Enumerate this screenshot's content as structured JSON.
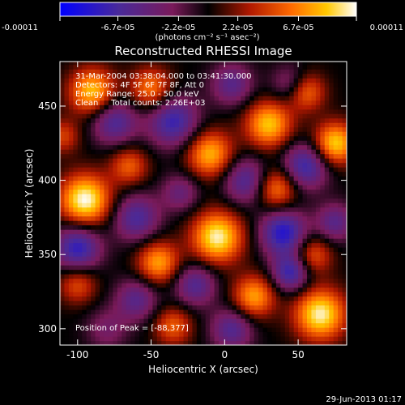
{
  "chart_data": {
    "type": "heatmap",
    "title": "Reconstructed RHESSI Image",
    "xlabel": "Heliocentric X (arcsec)",
    "ylabel": "Heliocentric Y (arcsec)",
    "xlim": [
      -112,
      83
    ],
    "ylim": [
      289,
      480
    ],
    "x_ticks": [
      -100,
      -50,
      0,
      50
    ],
    "y_ticks": [
      300,
      350,
      400,
      450
    ],
    "colorbar": {
      "range": [
        -0.00011,
        0.00011
      ],
      "tick_values": [
        -0.00011,
        -6.7e-05,
        -2.2e-05,
        2.2e-05,
        6.7e-05,
        0.00011
      ],
      "tick_labels": [
        "-0.00011",
        "-6.7e-05",
        "-2.2e-05",
        "2.2e-05",
        "6.7e-05",
        "0.00011"
      ],
      "units": "(photons cm⁻² s⁻¹ asec⁻²)",
      "colors": [
        "#0000ff",
        "#4a2a99",
        "#7a1a5a",
        "#000000",
        "#b01800",
        "#ff6a00",
        "#ffc800",
        "#ffffff"
      ]
    },
    "annotations": [
      "31-Mar-2004 03:38:04.000 to 03:41:30.000",
      "Detectors: 4F 5F 6F 7F 8F, Att 0",
      "Energy Range: 25.0 - 50.0 keV",
      "Clean     Total counts: 2.26E+03"
    ],
    "peak_label": "Position of Peak = [-88,377]",
    "blobs": [
      {
        "x": -95,
        "y": 387,
        "v": 1.0,
        "s": 12
      },
      {
        "x": -90,
        "y": 460,
        "v": 0.8,
        "s": 11
      },
      {
        "x": -50,
        "y": 462,
        "v": 0.6,
        "s": 10
      },
      {
        "x": -65,
        "y": 410,
        "v": 0.5,
        "s": 9
      },
      {
        "x": -10,
        "y": 418,
        "v": 0.75,
        "s": 11
      },
      {
        "x": 30,
        "y": 438,
        "v": 0.8,
        "s": 11
      },
      {
        "x": 75,
        "y": 425,
        "v": 0.85,
        "s": 10
      },
      {
        "x": 55,
        "y": 460,
        "v": 0.6,
        "s": 9
      },
      {
        "x": -5,
        "y": 362,
        "v": 0.95,
        "s": 12
      },
      {
        "x": 35,
        "y": 395,
        "v": 0.65,
        "s": 10
      },
      {
        "x": 60,
        "y": 350,
        "v": 0.5,
        "s": 9
      },
      {
        "x": 65,
        "y": 310,
        "v": 0.95,
        "s": 12
      },
      {
        "x": 20,
        "y": 322,
        "v": 0.7,
        "s": 10
      },
      {
        "x": -45,
        "y": 345,
        "v": 0.7,
        "s": 10
      },
      {
        "x": -35,
        "y": 302,
        "v": 0.5,
        "s": 9
      },
      {
        "x": -100,
        "y": 330,
        "v": 0.45,
        "s": 9
      },
      {
        "x": -110,
        "y": 430,
        "v": 0.4,
        "s": 8
      },
      {
        "x": -80,
        "y": 300,
        "v": -0.3,
        "s": 10
      },
      {
        "x": -75,
        "y": 440,
        "v": -0.6,
        "s": 11
      },
      {
        "x": -35,
        "y": 440,
        "v": -0.7,
        "s": 12
      },
      {
        "x": 5,
        "y": 465,
        "v": -0.5,
        "s": 10
      },
      {
        "x": 45,
        "y": 465,
        "v": -0.4,
        "s": 9
      },
      {
        "x": 15,
        "y": 400,
        "v": -0.6,
        "s": 11
      },
      {
        "x": 55,
        "y": 410,
        "v": -0.7,
        "s": 11
      },
      {
        "x": -100,
        "y": 355,
        "v": -0.75,
        "s": 11
      },
      {
        "x": -60,
        "y": 375,
        "v": -0.6,
        "s": 11
      },
      {
        "x": -20,
        "y": 330,
        "v": -0.55,
        "s": 10
      },
      {
        "x": 40,
        "y": 365,
        "v": -0.8,
        "s": 11
      },
      {
        "x": 45,
        "y": 338,
        "v": -0.7,
        "s": 9
      },
      {
        "x": 75,
        "y": 372,
        "v": -0.5,
        "s": 9
      },
      {
        "x": -60,
        "y": 320,
        "v": -0.5,
        "s": 10
      },
      {
        "x": 5,
        "y": 300,
        "v": -0.55,
        "s": 10
      },
      {
        "x": -30,
        "y": 392,
        "v": -0.4,
        "s": 9
      }
    ]
  },
  "footer": {
    "timestamp": "29-Jun-2013 01:17"
  }
}
